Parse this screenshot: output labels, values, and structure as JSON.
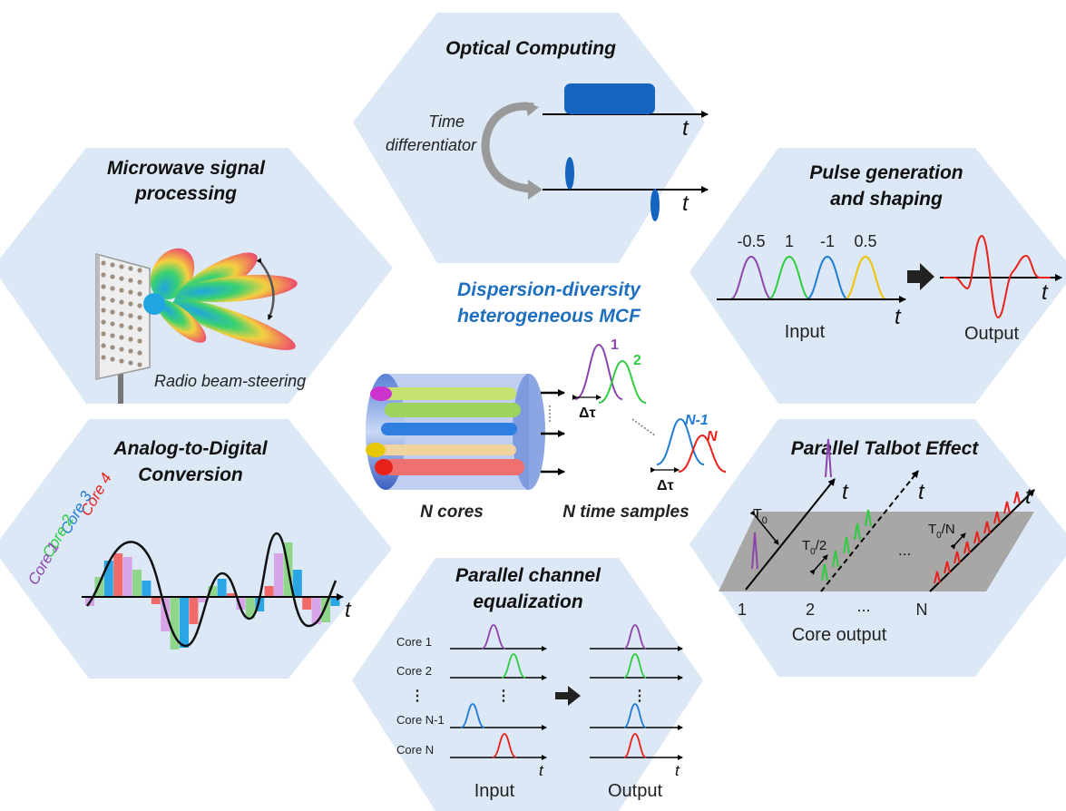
{
  "center": {
    "title_line1": "Dispersion-diversity",
    "title_line2": "heterogeneous MCF",
    "n_cores": "N cores",
    "n_time_samples": "N time samples",
    "pulse_1": "1",
    "pulse_2": "2",
    "pulse_n1": "N-1",
    "pulse_n": "N",
    "delta_tau": "Δτ"
  },
  "optical_computing": {
    "title": "Optical Computing",
    "label_line1": "Time",
    "label_line2": "differentiator",
    "axis": "t"
  },
  "microwave": {
    "title_line1": "Microwave signal",
    "title_line2": "processing",
    "caption": "Radio beam-steering"
  },
  "pulse_generation": {
    "title_line1": "Pulse generation",
    "title_line2": "and shaping",
    "weights": [
      "-0.5",
      "1",
      "-1",
      "0.5"
    ],
    "axis": "t",
    "input_label": "Input",
    "output_label": "Output"
  },
  "adc": {
    "title_line1": "Analog-to-Digital",
    "title_line2": "Conversion",
    "cores": [
      "Core 4",
      "Core 3",
      "Core 2",
      "Core 1"
    ],
    "axis": "t"
  },
  "talbot": {
    "title": "Parallel Talbot Effect",
    "t0": "T",
    "t0_sub": "0",
    "t0_half": "/2",
    "t0_n": "/N",
    "dots": "...",
    "tick_1": "1",
    "tick_2": "2",
    "tick_n": "N",
    "axis": "t",
    "core_output": "Core output"
  },
  "equalization": {
    "title_line1": "Parallel channel",
    "title_line2": "equalization",
    "rows": [
      "Core 1",
      "Core 2",
      "⋮",
      "Core N-1",
      "Core N"
    ],
    "input_label": "Input",
    "output_label": "Output",
    "axis": "t"
  },
  "colors": {
    "hexagon": "#dce8f5",
    "purple": "#8e44ad",
    "green": "#2ecc40",
    "blue": "#1f7bd6",
    "yellow": "#f2c200",
    "red": "#e8211b",
    "title_blue": "#1f6fbf",
    "pulse_fill": "#1565c0"
  }
}
